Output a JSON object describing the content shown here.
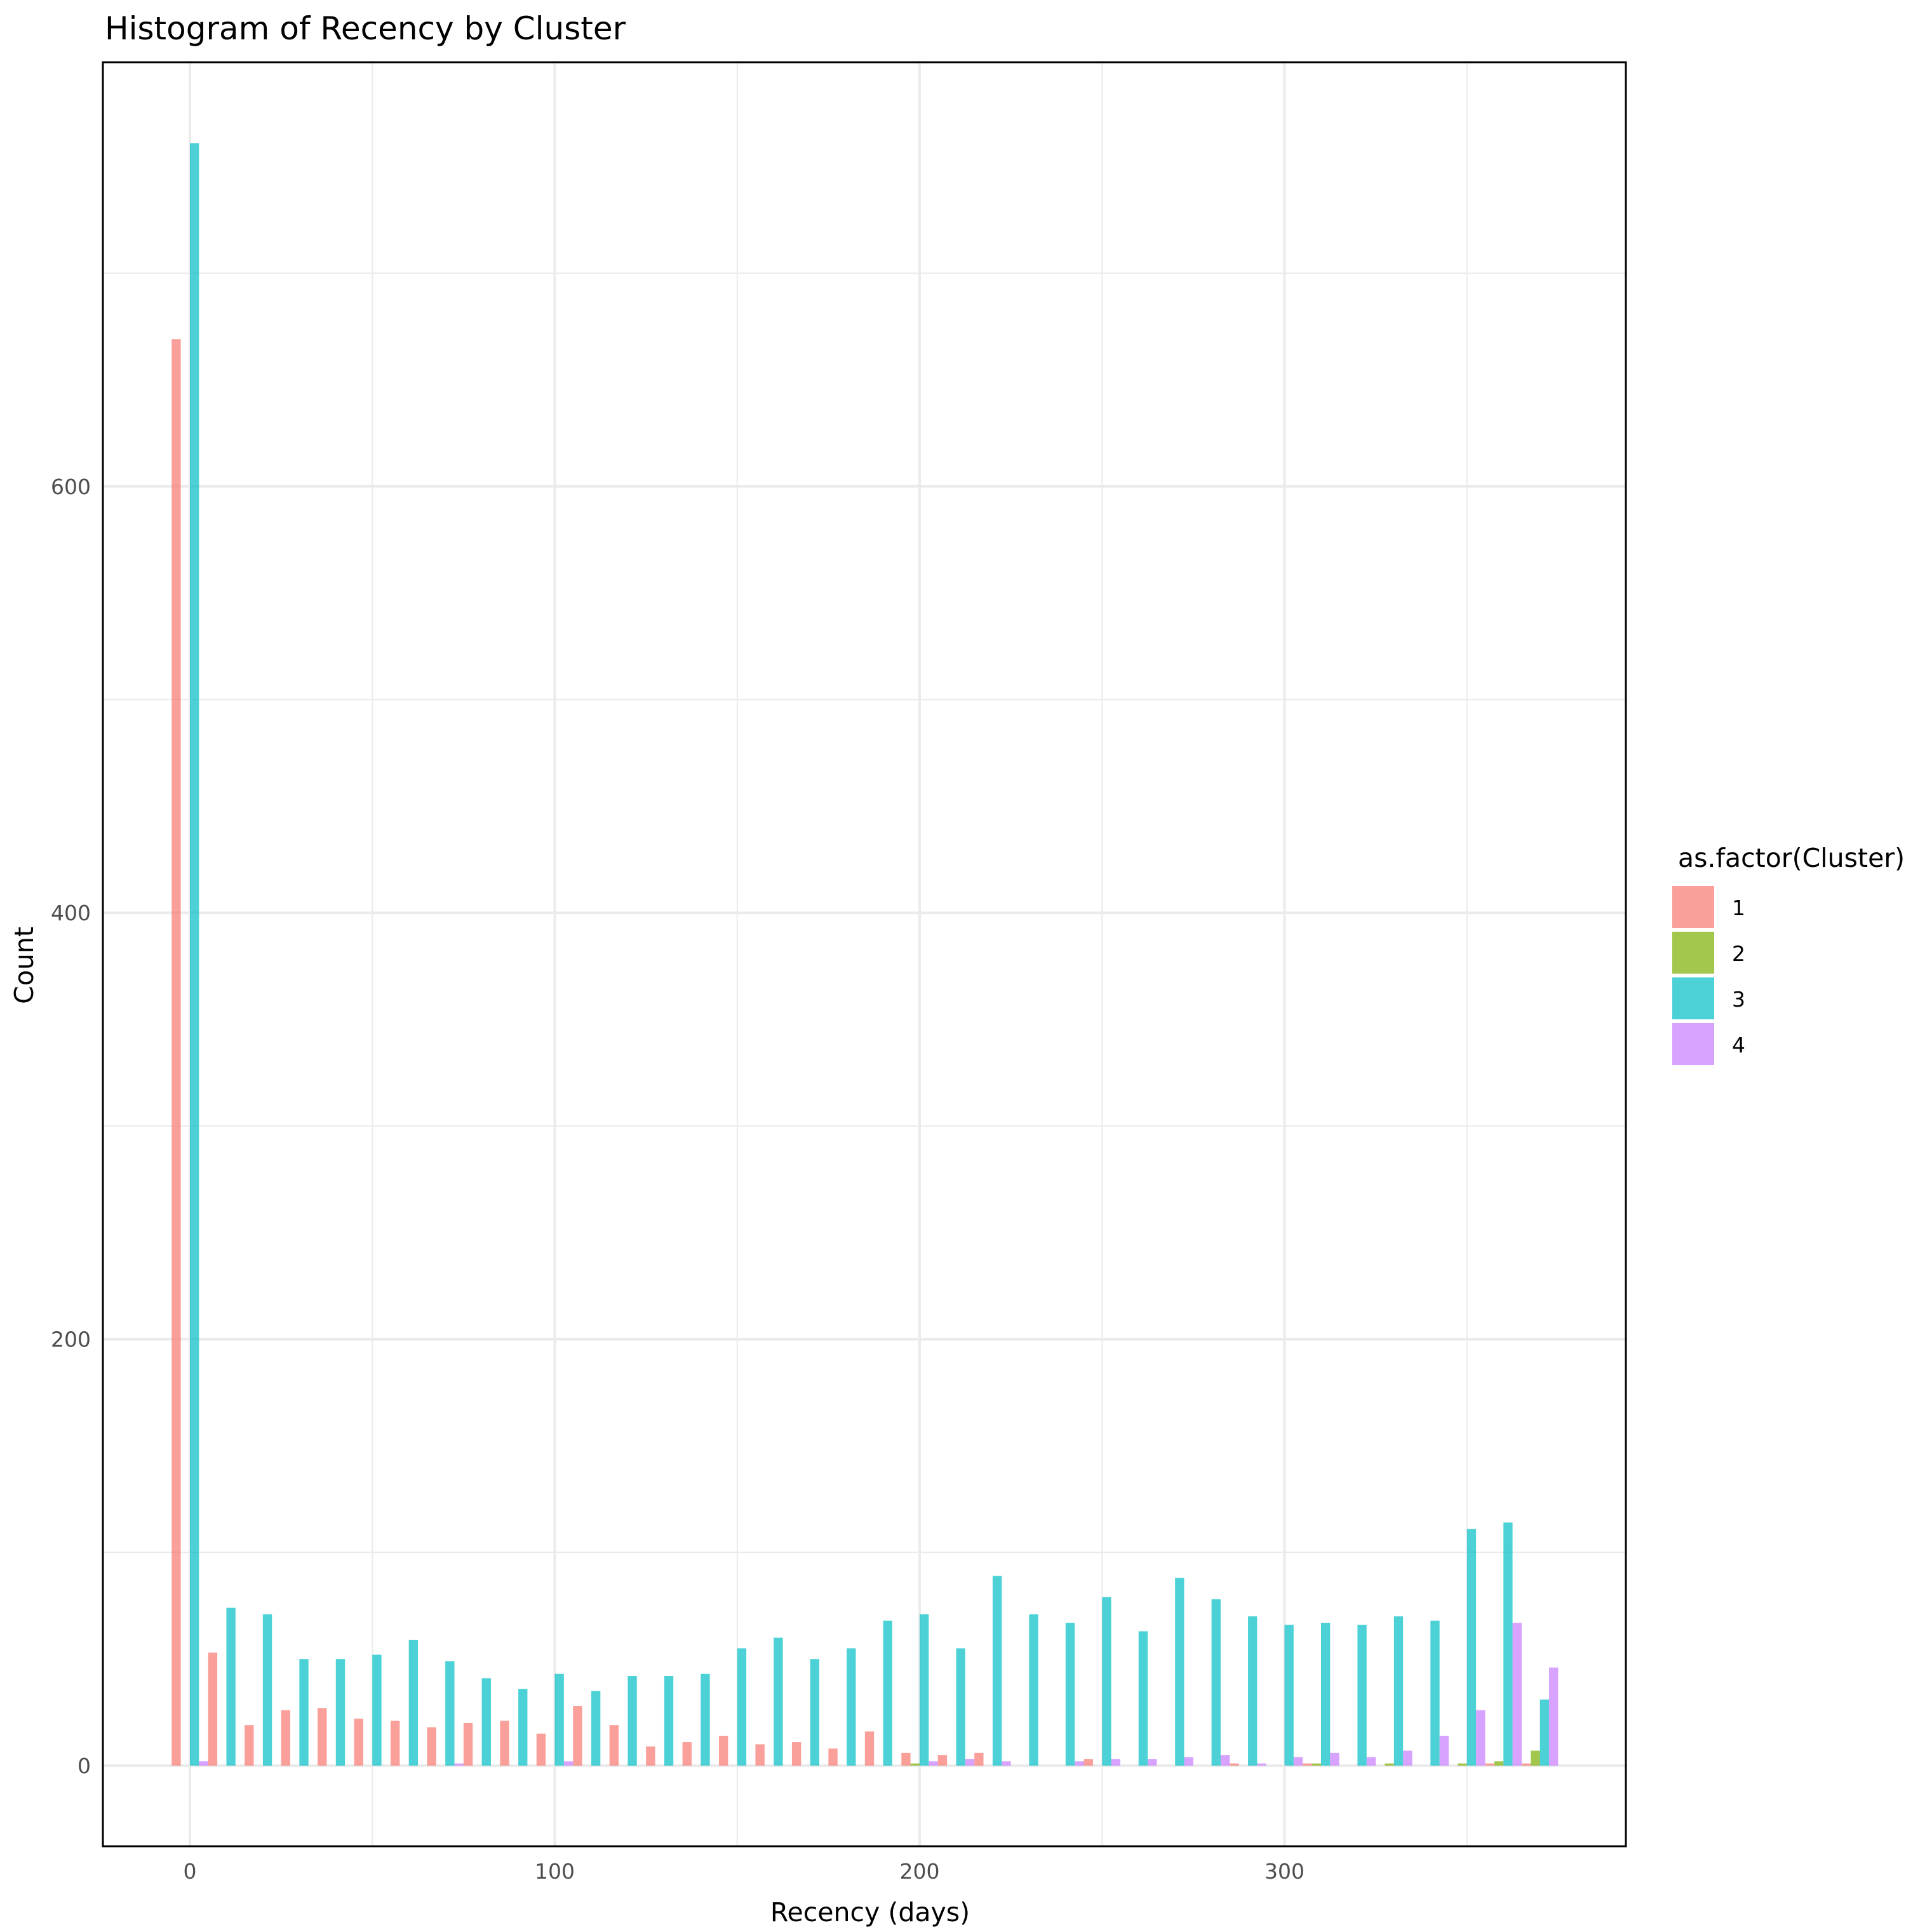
{
  "chart_data": {
    "type": "bar",
    "subtype": "histogram-dodged",
    "title": "Histogram of Recency by Cluster",
    "xlabel": "Recency (days)",
    "ylabel": "Count",
    "xlim": [
      -23,
      395
    ],
    "ylim": [
      -38,
      799
    ],
    "x_ticks": [
      0,
      100,
      200,
      300
    ],
    "x_tick_labels": [
      "0",
      "100",
      "200",
      "300"
    ],
    "x_minor_gridlines": [
      50,
      150,
      250,
      350
    ],
    "y_ticks": [
      0,
      200,
      400,
      600
    ],
    "y_tick_labels": [
      "0",
      "200",
      "400",
      "600"
    ],
    "y_minor_gridlines": [
      100,
      300,
      500,
      700
    ],
    "grid": true,
    "binwidth": 10,
    "legend": {
      "title": "as.factor(Cluster)",
      "position": "right",
      "entries": [
        "1",
        "2",
        "3",
        "4"
      ]
    },
    "bin_centers": [
      0,
      10,
      20,
      30,
      40,
      50,
      60,
      70,
      80,
      90,
      100,
      110,
      120,
      130,
      140,
      150,
      160,
      170,
      180,
      190,
      200,
      210,
      220,
      230,
      240,
      250,
      260,
      270,
      280,
      290,
      300,
      310,
      320,
      330,
      340,
      350,
      360,
      370
    ],
    "series": [
      {
        "name": "1",
        "color": "#F8766D",
        "values": [
          669,
          53,
          19,
          26,
          27,
          22,
          21,
          18,
          20,
          21,
          15,
          28,
          19,
          9,
          11,
          14,
          10,
          11,
          8,
          16,
          6,
          5,
          6,
          0,
          0,
          3,
          0,
          0,
          0,
          1,
          0,
          1,
          0,
          0,
          0,
          0,
          1,
          1
        ]
      },
      {
        "name": "2",
        "color": "#7CAE00",
        "values": [
          0,
          0,
          0,
          0,
          0,
          0,
          0,
          0,
          0,
          0,
          0,
          0,
          0,
          0,
          0,
          0,
          0,
          0,
          0,
          0,
          1,
          0,
          0,
          0,
          0,
          0,
          0,
          0,
          0,
          0,
          0,
          1,
          0,
          1,
          0,
          1,
          2,
          7
        ]
      },
      {
        "name": "3",
        "color": "#00BFC4",
        "values": [
          761,
          74,
          71,
          50,
          50,
          52,
          59,
          49,
          41,
          36,
          43,
          35,
          42,
          42,
          43,
          55,
          60,
          50,
          55,
          68,
          71,
          55,
          89,
          71,
          67,
          79,
          63,
          88,
          78,
          70,
          66,
          67,
          66,
          70,
          68,
          111,
          114,
          31
        ]
      },
      {
        "name": "4",
        "color": "#C77CFF",
        "values": [
          2,
          0,
          0,
          0,
          0,
          0,
          0,
          1,
          0,
          0,
          2,
          0,
          0,
          0,
          0,
          0,
          0,
          0,
          0,
          0,
          2,
          3,
          2,
          0,
          2,
          3,
          3,
          4,
          5,
          1,
          4,
          6,
          4,
          7,
          14,
          26,
          67,
          46
        ]
      }
    ],
    "bar_alpha": 0.7
  },
  "title": "Histogram of Recency by Cluster",
  "x_axis": {
    "label": "Recency (days)",
    "ticks": [
      "0",
      "100",
      "200",
      "300"
    ]
  },
  "y_axis": {
    "label": "Count",
    "ticks": [
      "0",
      "200",
      "400",
      "600"
    ]
  },
  "legend": {
    "title": "as.factor(Cluster)",
    "items": [
      {
        "label": "1",
        "color": "#F8766D"
      },
      {
        "label": "2",
        "color": "#7CAE00"
      },
      {
        "label": "3",
        "color": "#00BFC4"
      },
      {
        "label": "4",
        "color": "#C77CFF"
      }
    ]
  }
}
